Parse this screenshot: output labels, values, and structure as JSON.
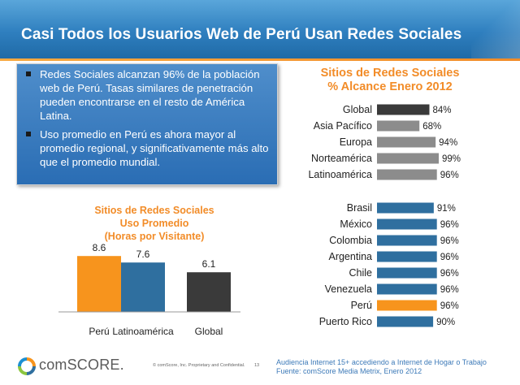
{
  "header": {
    "title": "Casi Todos los Usuarios Web de Perú Usan Redes Sociales"
  },
  "bullets": [
    "Redes Sociales alcanzan 96% de la población web de Perú. Tasas similares de penetración pueden encontrarse en el resto de América Latina.",
    "Uso promedio en Perú es ahora mayor al promedio regional, y significativamente más alto que el promedio mundial."
  ],
  "left_chart_title": [
    "Sitios de Redes Sociales",
    "Uso Promedio",
    "(Horas por Visitante)"
  ],
  "right_chart_title": [
    "Sitios de Redes Sociales",
    "% Alcance Enero 2012"
  ],
  "chart_data": [
    {
      "type": "bar",
      "title": "Sitios de Redes Sociales Uso Promedio (Horas por Visitante)",
      "categories": [
        "Perú",
        "Latinoamérica",
        "Global"
      ],
      "values": [
        8.6,
        7.6,
        6.1
      ],
      "value_labels": [
        "8.6",
        "7.6",
        "6.1"
      ],
      "colors": [
        "#f7941d",
        "#2f6f9f",
        "#3a3a3a"
      ],
      "xlabel": "",
      "ylabel": "",
      "ylim": [
        0,
        10
      ]
    },
    {
      "type": "bar",
      "orientation": "horizontal",
      "title": "Sitios de Redes Sociales % Alcance Enero 2012",
      "categories": [
        "Global",
        "Asia Pacífico",
        "Europa",
        "Norteamérica",
        "Latinoamérica",
        "Brasil",
        "México",
        "Colombia",
        "Argentina",
        "Chile",
        "Venezuela",
        "Perú",
        "Puerto Rico"
      ],
      "values": [
        84,
        68,
        94,
        99,
        96,
        91,
        96,
        96,
        96,
        96,
        96,
        96,
        90
      ],
      "value_labels": [
        "84%",
        "68%",
        "94%",
        "99%",
        "96%",
        "91%",
        "96%",
        "96%",
        "96%",
        "96%",
        "96%",
        "96%",
        "90%"
      ],
      "colors": [
        "#3a3a3a",
        "#8c8c8c",
        "#8c8c8c",
        "#8c8c8c",
        "#8c8c8c",
        "#2f6f9f",
        "#2f6f9f",
        "#2f6f9f",
        "#2f6f9f",
        "#2f6f9f",
        "#2f6f9f",
        "#f7941d",
        "#2f6f9f"
      ],
      "xlim": [
        0,
        100
      ]
    }
  ],
  "footer": {
    "brand": "comSCORE.",
    "confidential": "© comScore, Inc.   Proprietary and Confidential.",
    "page": "13",
    "source_line1": "Audiencia Internet 15+ accediendo a Internet de Hogar o Trabajo",
    "source_line2": "Fuente:  comScore Media Metrix,  Enero 2012"
  }
}
